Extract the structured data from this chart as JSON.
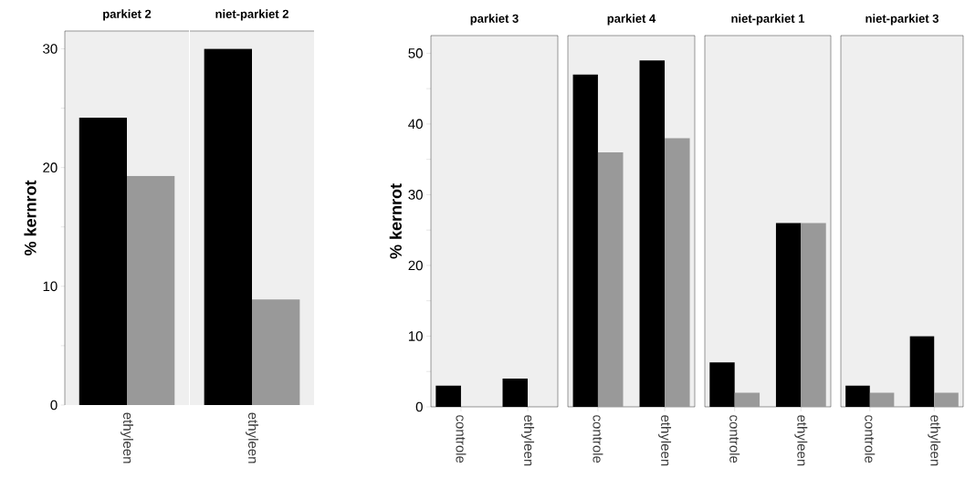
{
  "chart_data": [
    {
      "type": "bar",
      "title": "parkiet 2",
      "ylabel": "% kernrot",
      "categories": [
        "ethyleen"
      ],
      "series": [
        {
          "color": "#000000",
          "values": [
            24.2
          ]
        },
        {
          "color": "#999999",
          "values": [
            19.3
          ]
        }
      ],
      "ylim": [
        0,
        31.5
      ],
      "yticks": [
        0,
        {
          "value": 5,
          "label": null
        },
        10,
        {
          "value": 15,
          "label": null
        },
        20,
        {
          "value": 25,
          "label": null
        },
        30
      ]
    },
    {
      "type": "bar",
      "title": "niet-parkiet 2",
      "categories": [
        "ethyleen"
      ],
      "series": [
        {
          "color": "#000000",
          "values": [
            30.0
          ]
        },
        {
          "color": "#999999",
          "values": [
            8.9
          ]
        }
      ],
      "ylim": [
        0,
        31.5
      ],
      "tick_labels": "x"
    },
    {
      "type": "bar",
      "title": "parkiet 3",
      "ylabel": "% kernrot",
      "categories": [
        "controle",
        "ethyleen"
      ],
      "series": [
        {
          "color": "#000000",
          "values": [
            3.0,
            4.0
          ]
        },
        {
          "color": "#999999",
          "values": [
            null,
            null
          ]
        }
      ],
      "ylim": [
        0,
        52.5
      ],
      "yticks": [
        0,
        {
          "value": 5,
          "label": null
        },
        10,
        {
          "value": 15,
          "label": null
        },
        20,
        {
          "value": 25,
          "label": null
        },
        30,
        {
          "value": 35,
          "label": null
        },
        40,
        {
          "value": 45,
          "label": null
        },
        50
      ]
    },
    {
      "type": "bar",
      "title": "parkiet 4",
      "categories": [
        "controle",
        "ethyleen"
      ],
      "series": [
        {
          "color": "#000000",
          "values": [
            47.0,
            49.0
          ]
        },
        {
          "color": "#999999",
          "values": [
            36.0,
            38.0
          ]
        }
      ],
      "ylim": [
        0,
        52.5
      ],
      "tick_labels": "x"
    },
    {
      "type": "bar",
      "title": "niet-parkiet 1",
      "categories": [
        "controle",
        "ethyleen"
      ],
      "series": [
        {
          "color": "#000000",
          "values": [
            6.3,
            26.0
          ]
        },
        {
          "color": "#999999",
          "values": [
            2.0,
            26.0
          ]
        }
      ],
      "ylim": [
        0,
        52.5
      ],
      "tick_labels": "x"
    },
    {
      "type": "bar",
      "title": "niet-parkiet 3",
      "categories": [
        "controle",
        "ethyleen"
      ],
      "series": [
        {
          "color": "#000000",
          "values": [
            3.0,
            10.0
          ]
        },
        {
          "color": "#999999",
          "values": [
            2.0,
            2.0
          ]
        }
      ],
      "ylim": [
        0,
        52.5
      ],
      "tick_labels": "x"
    }
  ]
}
